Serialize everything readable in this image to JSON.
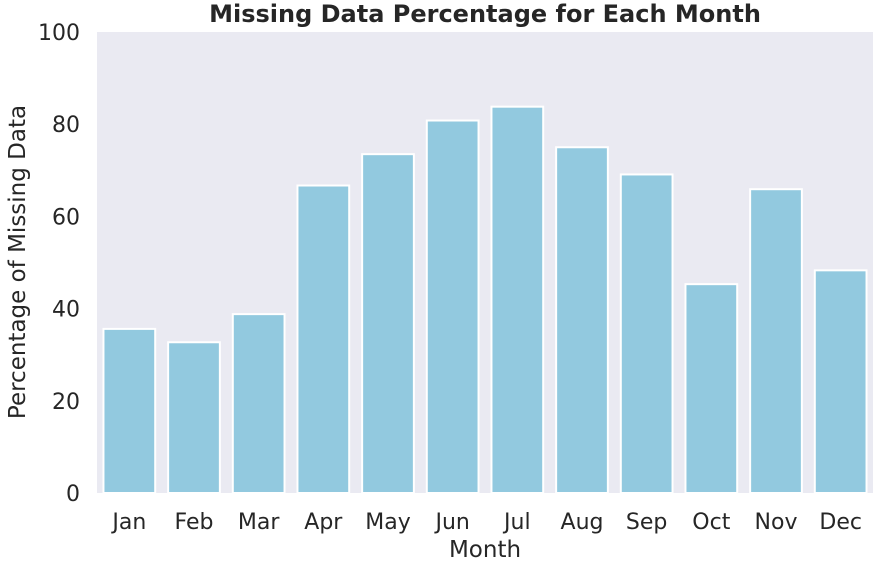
{
  "chart_data": {
    "type": "bar",
    "title": "Missing Data Percentage for Each Month",
    "xlabel": "Month",
    "ylabel": "Percentage of Missing Data",
    "categories": [
      "Jan",
      "Feb",
      "Mar",
      "Apr",
      "May",
      "Jun",
      "Jul",
      "Aug",
      "Sep",
      "Oct",
      "Nov",
      "Dec"
    ],
    "values": [
      35.6,
      32.7,
      38.8,
      66.7,
      73.5,
      80.8,
      83.8,
      75.0,
      69.1,
      45.3,
      65.9,
      48.3
    ],
    "ylim": [
      0,
      100
    ],
    "yticks": [
      "0",
      "20",
      "40",
      "60",
      "80",
      "100"
    ],
    "grid": false,
    "bar_color": "#92c9df",
    "bar_edge_color": "#ffffff",
    "plot_background": "#eaeaf2"
  }
}
